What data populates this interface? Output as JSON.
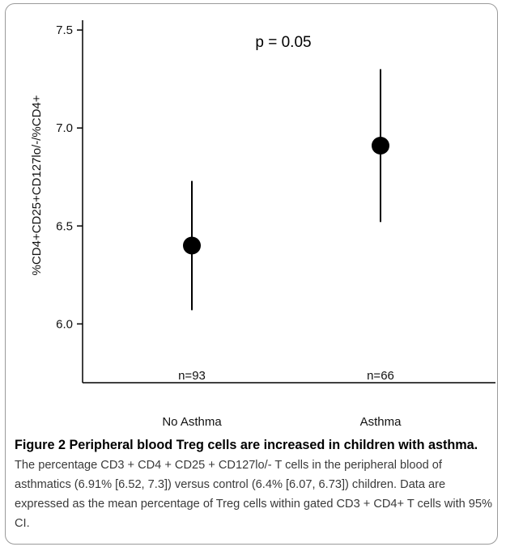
{
  "chart_data": {
    "type": "scatter",
    "categories": [
      "No Asthma",
      "Asthma"
    ],
    "series": [
      {
        "values": [
          6.4,
          6.91
        ],
        "ci_low": [
          6.07,
          6.52
        ],
        "ci_high": [
          6.73,
          7.3
        ]
      }
    ],
    "n_labels": [
      "n=93",
      "n=66"
    ],
    "ylabel": "%CD4+CD25+CD127lo/-/%CD4+",
    "xlabel": "",
    "ylim": [
      5.7,
      7.55
    ],
    "yticks": [
      "6.0",
      "6.5",
      "7.0",
      "7.5"
    ],
    "annotation": "p = 0.05",
    "grid": false
  },
  "caption": {
    "lead": "Figure 2 Peripheral blood Treg cells are increased in children with asthma.",
    "body": " The percentage CD3 + CD4 + CD25 + CD127lo/- T cells in the peripheral blood of asthmatics (6.91% [6.52, 7.3]) versus control (6.4% [6.07, 6.73]) children. Data are expressed as the mean percentage of Treg cells within gated CD3 + CD4+ T cells with 95% CI."
  }
}
